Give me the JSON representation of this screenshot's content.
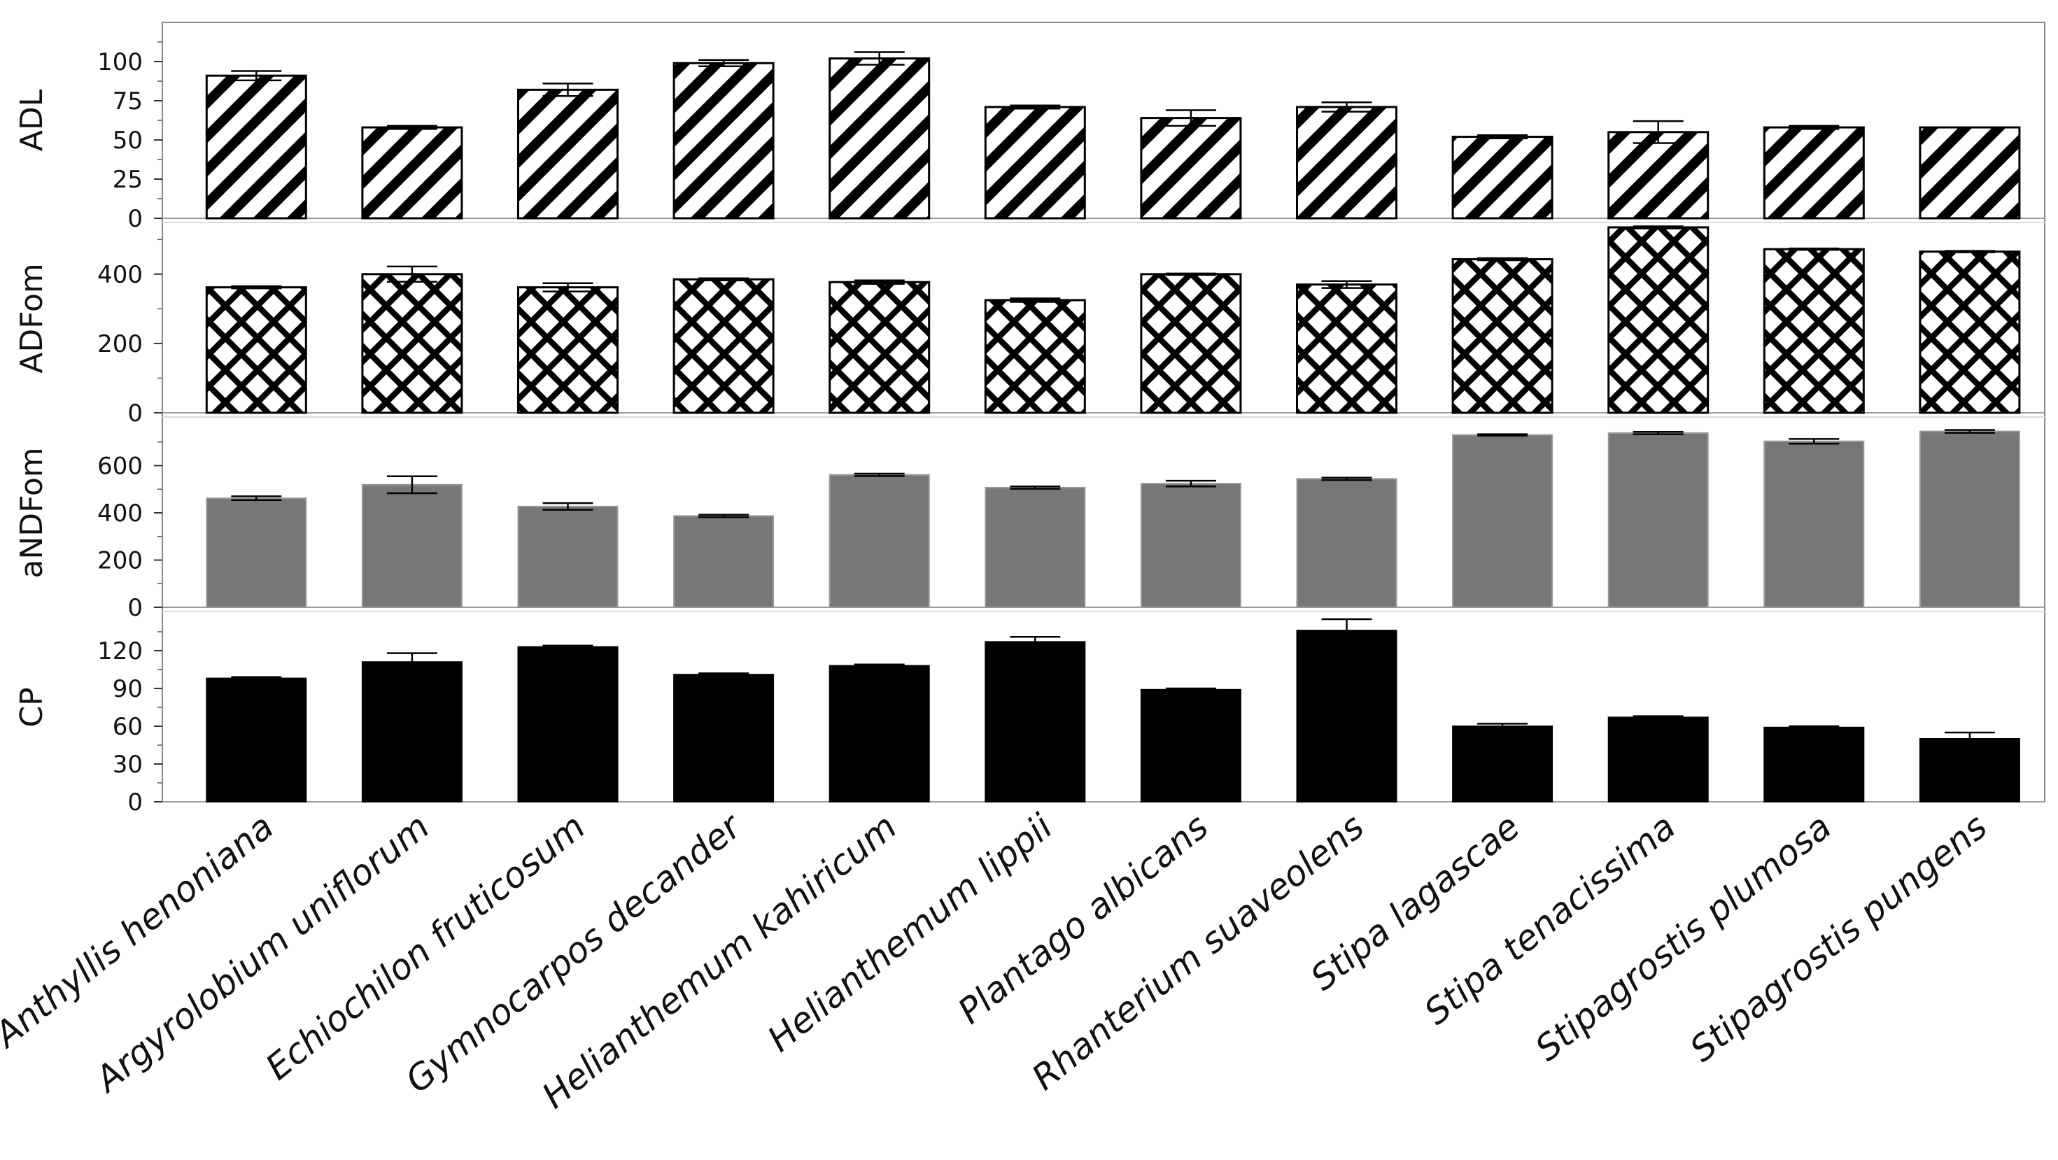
{
  "chart_data": {
    "type": "bar",
    "categories": [
      "Anthyllis  henoniana",
      "Argyrolobium uniflorum",
      "Echiochilon fruticosum",
      "Gymnocarpos decander",
      "Helianthemum kahiricum",
      "Helianthemum lippii",
      "Plantago albicans",
      "Rhanterium suaveolens",
      "Stipa lagascae",
      "Stipa tenacissima",
      "Stipagrostis plumosa",
      "Stipagrostis pungens"
    ],
    "panels": [
      {
        "label": "ADL",
        "ylim": [
          0,
          125
        ],
        "ticks": [
          "0",
          "25",
          "50",
          "75",
          "100"
        ],
        "tick_values": [
          0,
          25,
          50,
          75,
          100
        ],
        "fill": "stripes",
        "values": [
          91,
          58,
          82,
          99,
          102,
          71,
          64,
          71,
          52,
          55,
          58,
          58
        ],
        "errors": [
          3,
          1,
          4,
          2,
          4,
          1,
          5,
          3,
          1,
          7,
          1,
          0
        ]
      },
      {
        "label": "ADFom",
        "ylim": [
          0,
          545
        ],
        "ticks": [
          "0",
          "200",
          "400"
        ],
        "tick_values": [
          0,
          200,
          400
        ],
        "fill": "lattice",
        "values": [
          362,
          400,
          362,
          385,
          377,
          325,
          400,
          370,
          443,
          535,
          472,
          465
        ],
        "errors": [
          3,
          22,
          12,
          3,
          5,
          5,
          2,
          10,
          3,
          3,
          2,
          2
        ]
      },
      {
        "label": "aNDFom",
        "ylim": [
          0,
          800
        ],
        "ticks": [
          "0",
          "200",
          "400",
          "600"
        ],
        "tick_values": [
          0,
          200,
          400,
          600
        ],
        "fill": "#777777",
        "values": [
          462,
          519,
          427,
          387,
          561,
          507,
          524,
          544,
          730,
          738,
          703,
          745
        ],
        "errors": [
          8,
          36,
          14,
          5,
          5,
          5,
          12,
          5,
          3,
          5,
          10,
          6
        ]
      },
      {
        "label": "CP",
        "ylim": [
          0,
          150
        ],
        "ticks": [
          "0",
          "30",
          "60",
          "90",
          "120"
        ],
        "tick_values": [
          0,
          30,
          60,
          90,
          120
        ],
        "fill": "#000000",
        "values": [
          98,
          111,
          123,
          101,
          108,
          127,
          89,
          136,
          60,
          67,
          59,
          50
        ],
        "errors": [
          1,
          7,
          1,
          1,
          1,
          4,
          1,
          9,
          2,
          1,
          1,
          5
        ]
      }
    ],
    "colors": {
      "frame": "#888888",
      "bar_outline": "#000000",
      "grey_fill": "#777777",
      "black_fill": "#000000"
    },
    "grid": false
  }
}
